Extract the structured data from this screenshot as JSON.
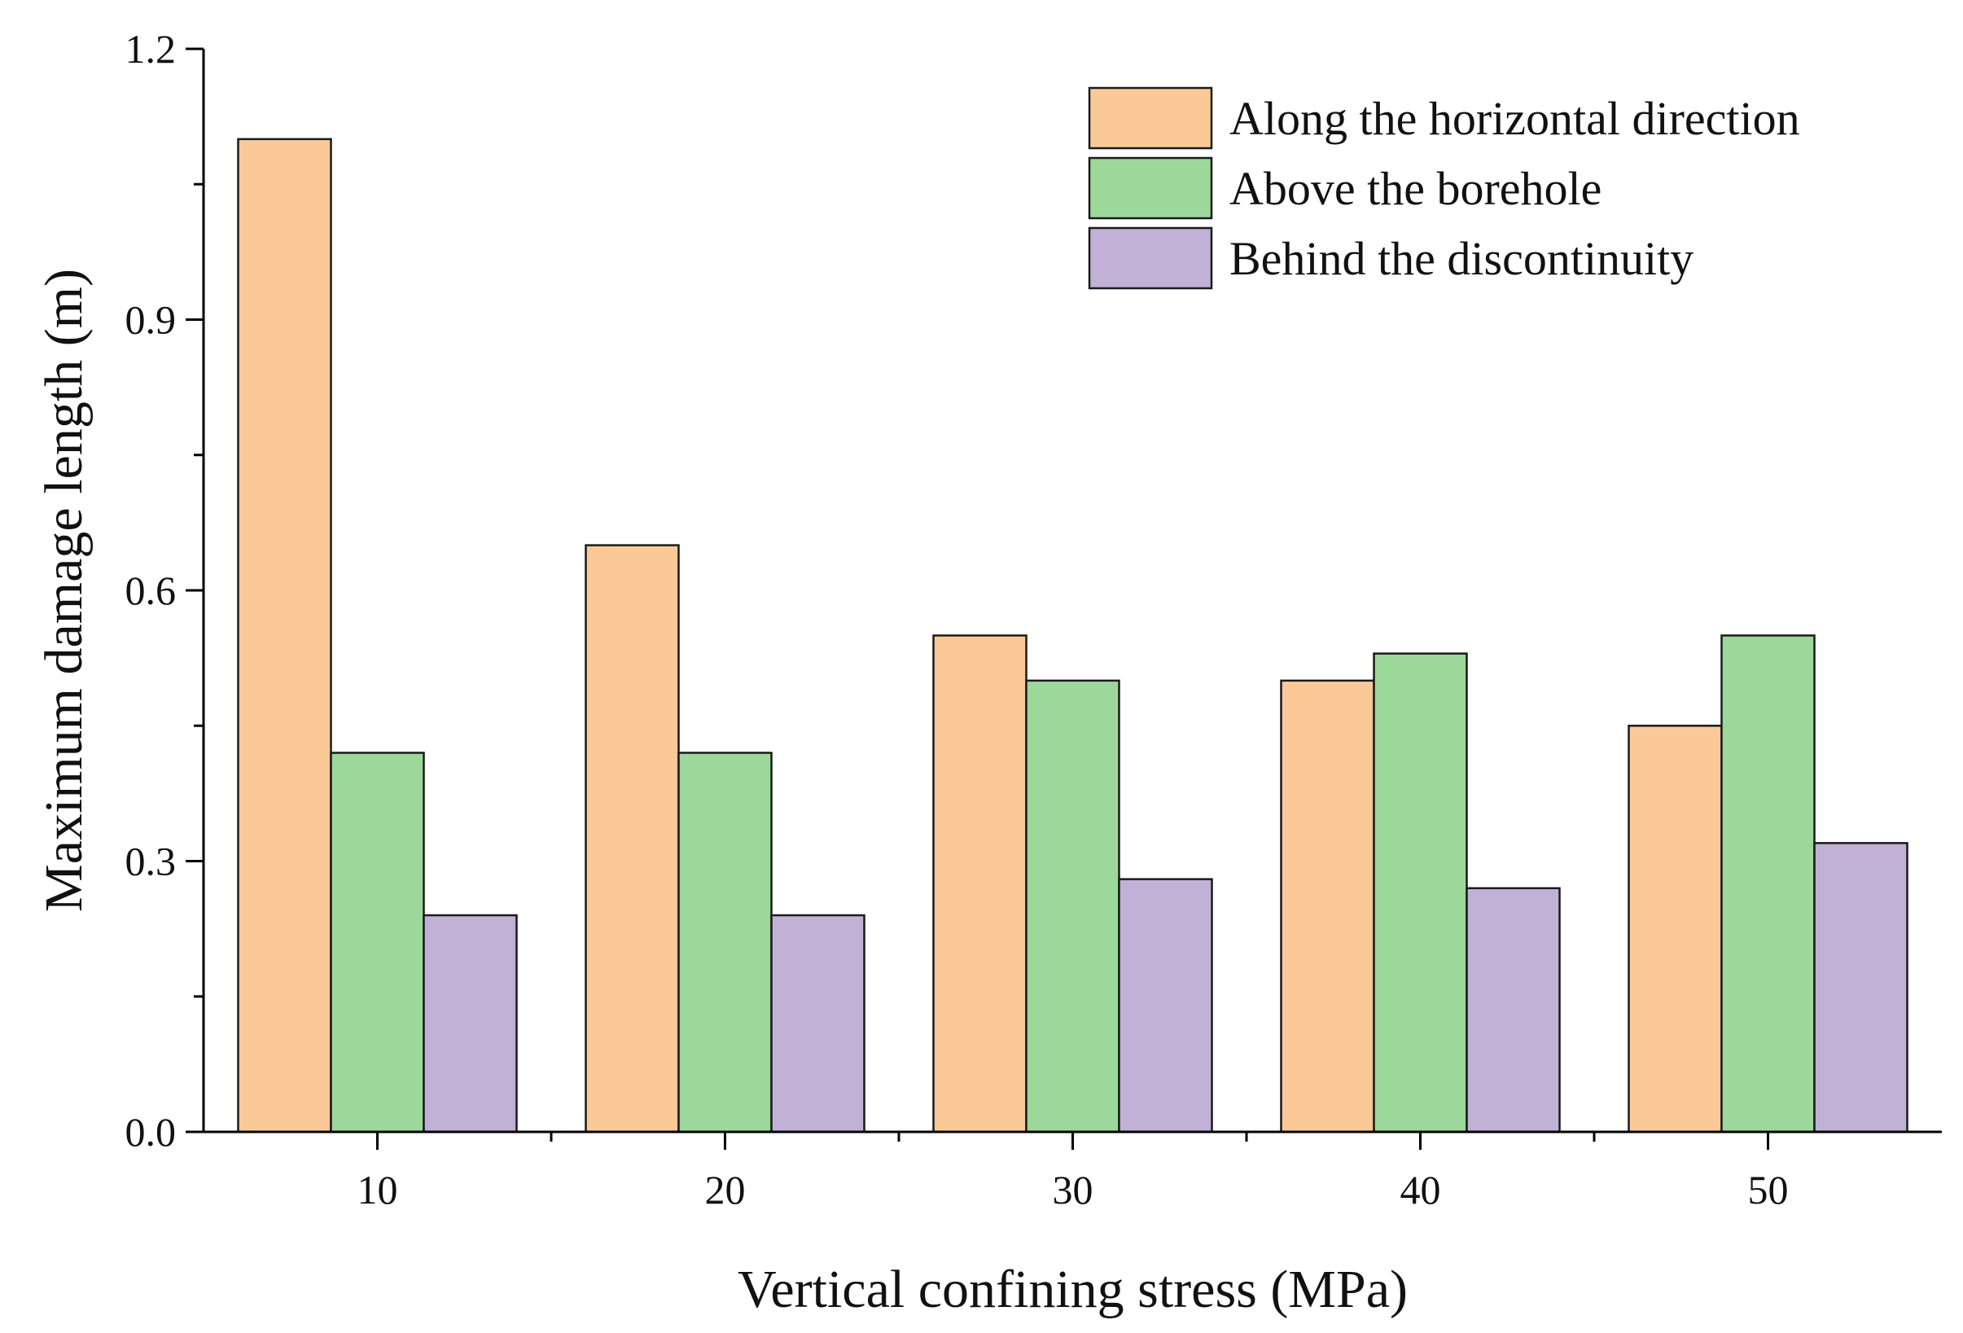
{
  "chart_data": {
    "type": "bar",
    "xlabel": "Vertical confining stress (MPa)",
    "ylabel": "Maximum damage length (m)",
    "categories": [
      "10",
      "20",
      "30",
      "40",
      "50"
    ],
    "ylim": [
      0,
      1.2
    ],
    "yticks": [
      "0.0",
      "0.3",
      "0.6",
      "0.9",
      "1.2"
    ],
    "grid": false,
    "legend_position": "top-right",
    "series": [
      {
        "name": "Along the horizontal direction",
        "color": "#FBC997",
        "values": [
          1.1,
          0.65,
          0.55,
          0.5,
          0.45
        ]
      },
      {
        "name": "Above the borehole",
        "color": "#9DD89B",
        "values": [
          0.42,
          0.42,
          0.5,
          0.53,
          0.55
        ]
      },
      {
        "name": "Behind the discontinuity",
        "color": "#C1B1D6",
        "values": [
          0.24,
          0.24,
          0.28,
          0.27,
          0.32
        ]
      }
    ]
  }
}
